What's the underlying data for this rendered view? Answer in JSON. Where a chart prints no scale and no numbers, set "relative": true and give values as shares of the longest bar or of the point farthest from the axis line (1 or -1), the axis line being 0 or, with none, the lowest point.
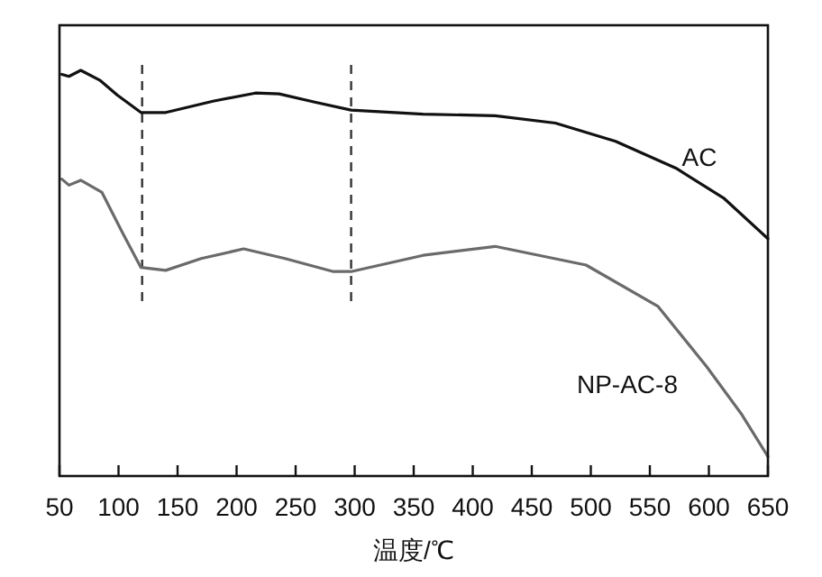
{
  "chart_data": {
    "type": "line",
    "xlabel": "温度/℃",
    "relative": true,
    "tick_labels": "x",
    "grid": false,
    "xlim": [
      50,
      650
    ],
    "xticks": [
      50,
      100,
      150,
      200,
      250,
      300,
      350,
      400,
      450,
      500,
      550,
      600,
      650
    ],
    "ref_lines": [
      {
        "axis": "x",
        "value": 120,
        "line_style": "dashed",
        "color": "#333333"
      },
      {
        "axis": "x",
        "value": 297,
        "line_style": "dashed",
        "color": "#333333"
      }
    ],
    "series": [
      {
        "name": "AC",
        "color": "#111111",
        "x": [
          52,
          58,
          68,
          84,
          99,
          119,
          140,
          180,
          216,
          236,
          267,
          297,
          358,
          419,
          470,
          521,
          572,
          613,
          650
        ],
        "values": [
          0.99,
          0.985,
          1.0,
          0.976,
          0.939,
          0.896,
          0.896,
          0.924,
          0.944,
          0.942,
          0.921,
          0.902,
          0.892,
          0.888,
          0.87,
          0.825,
          0.759,
          0.684,
          0.585
        ]
      },
      {
        "name": "NP-AC-8",
        "color": "#6a6a6a",
        "x": [
          52,
          58,
          68,
          86,
          104,
          119,
          140,
          170,
          206,
          241,
          282,
          297,
          358,
          419,
          496,
          557,
          598,
          628,
          650
        ],
        "values": [
          0.732,
          0.717,
          0.729,
          0.699,
          0.596,
          0.514,
          0.507,
          0.536,
          0.56,
          0.536,
          0.504,
          0.504,
          0.544,
          0.566,
          0.52,
          0.418,
          0.27,
          0.151,
          0.048
        ]
      }
    ]
  }
}
